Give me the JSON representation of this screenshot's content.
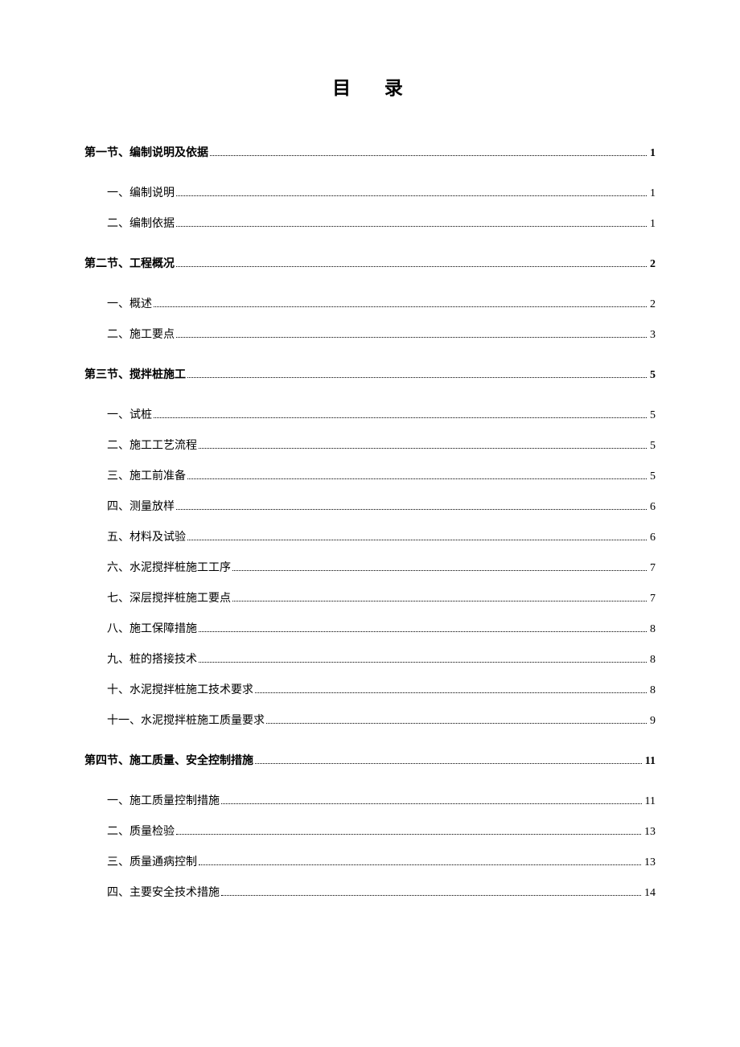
{
  "title": "目 录",
  "toc": [
    {
      "label": "第一节、编制说明及依据",
      "page": "1",
      "subs": [
        {
          "label": "一、编制说明",
          "page": "1"
        },
        {
          "label": "二、编制依据",
          "page": "1"
        }
      ]
    },
    {
      "label": "第二节、工程概况",
      "page": "2",
      "subs": [
        {
          "label": "一、概述",
          "page": "2"
        },
        {
          "label": "二、施工要点",
          "page": "3"
        }
      ]
    },
    {
      "label": "第三节、搅拌桩施工",
      "page": "5",
      "subs": [
        {
          "label": "一、试桩",
          "page": "5"
        },
        {
          "label": "二、施工工艺流程",
          "page": "5"
        },
        {
          "label": "三、施工前准备",
          "page": "5"
        },
        {
          "label": "四、测量放样",
          "page": "6"
        },
        {
          "label": "五、材料及试验",
          "page": "6"
        },
        {
          "label": "六、水泥搅拌桩施工工序",
          "page": "7"
        },
        {
          "label": "七、深层搅拌桩施工要点",
          "page": "7"
        },
        {
          "label": "八、施工保障措施",
          "page": "8"
        },
        {
          "label": "九、桩的搭接技术",
          "page": "8"
        },
        {
          "label": "十、水泥搅拌桩施工技术要求",
          "page": "8"
        },
        {
          "label": "十一、水泥搅拌桩施工质量要求",
          "page": "9"
        }
      ]
    },
    {
      "label": "第四节、施工质量、安全控制措施",
      "page": "11",
      "subs": [
        {
          "label": "一、施工质量控制措施",
          "page": "11"
        },
        {
          "label": "二、质量检验",
          "page": "13"
        },
        {
          "label": "三、质量通病控制",
          "page": "13"
        },
        {
          "label": "四、主要安全技术措施",
          "page": "14"
        }
      ]
    }
  ]
}
